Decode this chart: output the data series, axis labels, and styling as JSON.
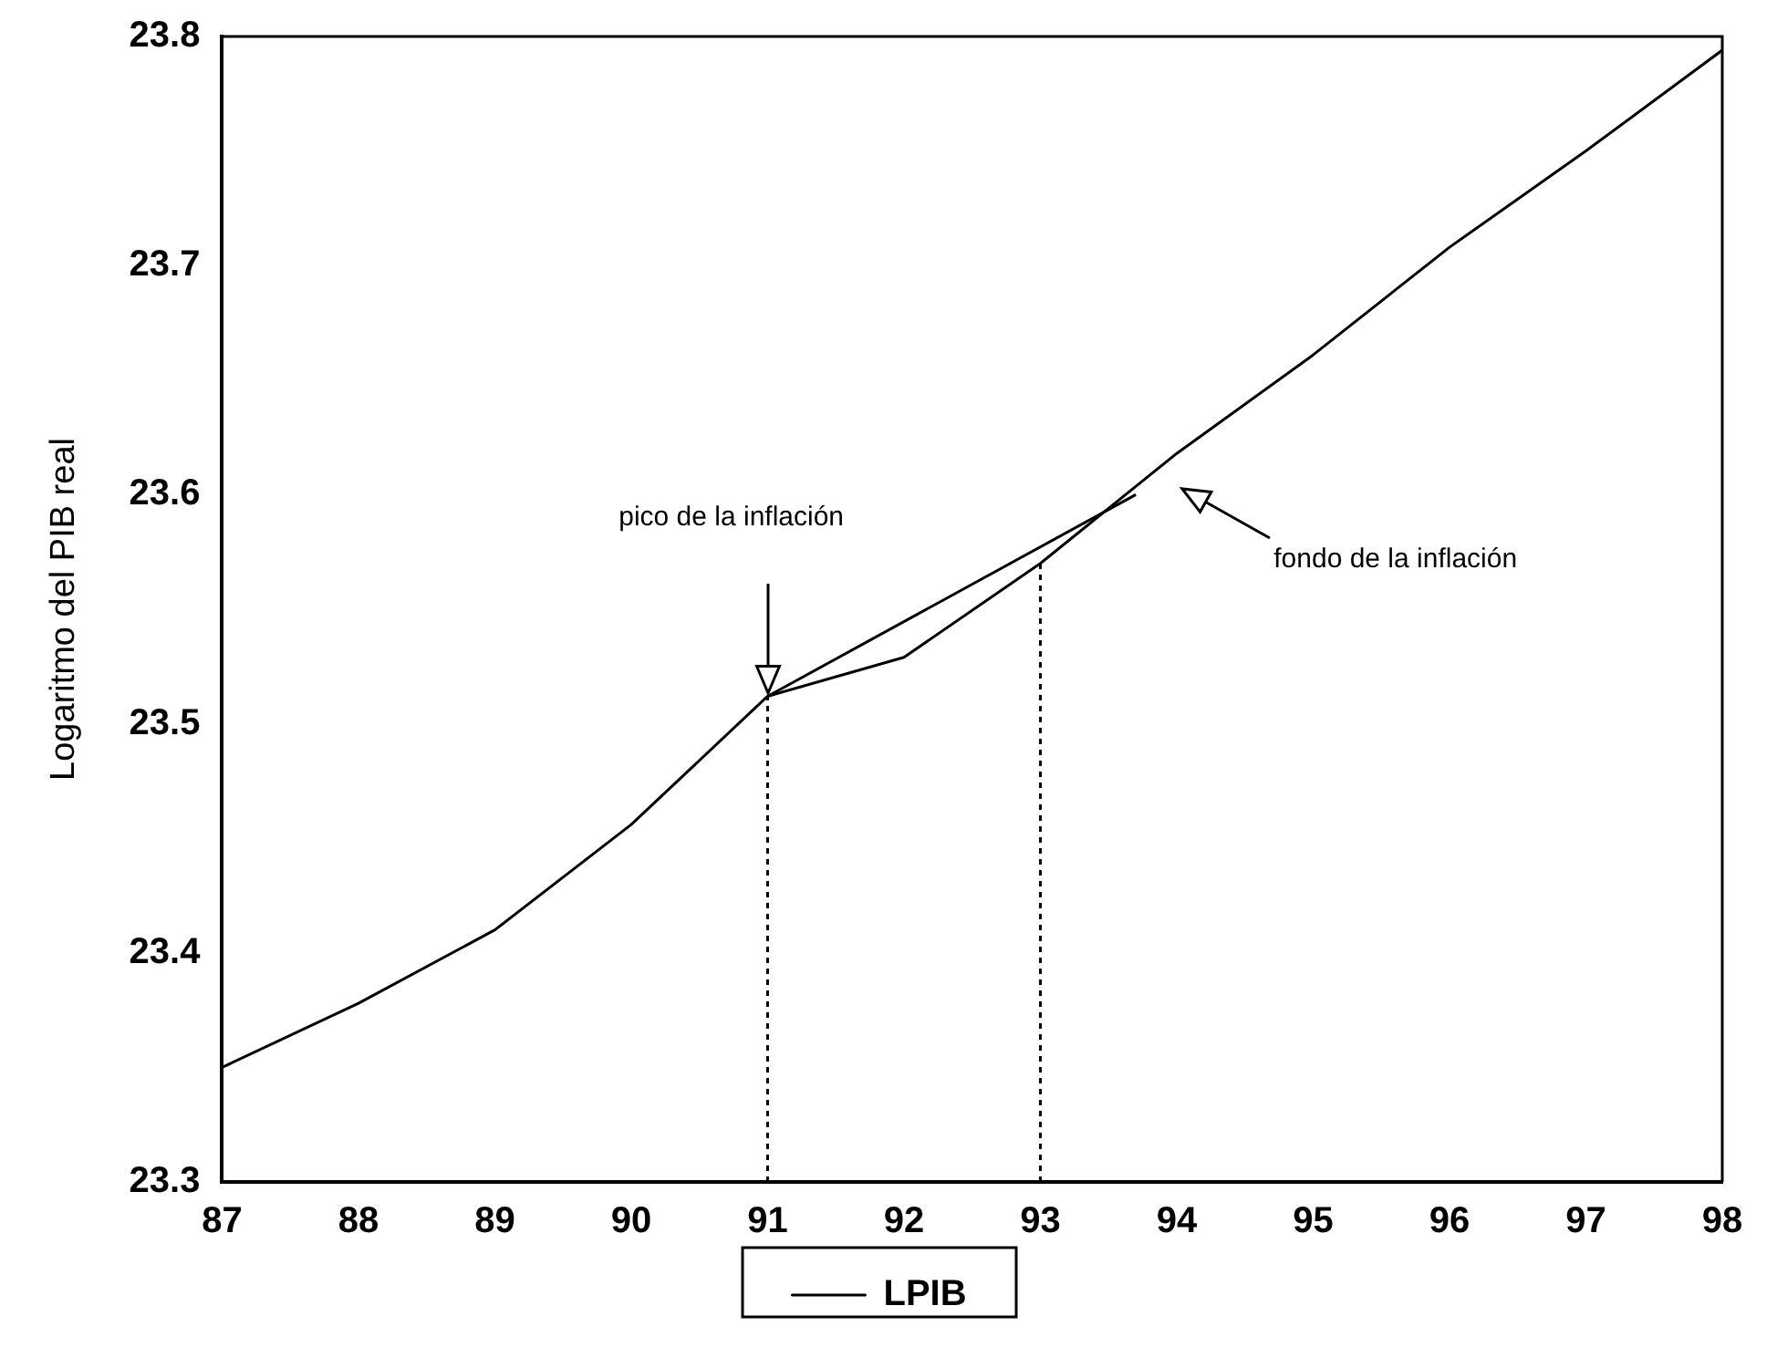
{
  "chart_data": {
    "type": "line",
    "ylabel": "Logaritmo del PIB real",
    "x": [
      87,
      88,
      89,
      90,
      91,
      92,
      93,
      94,
      95,
      96,
      97,
      98
    ],
    "series": [
      {
        "name": "LPIB",
        "color": "#000000",
        "values": [
          23.35,
          23.378,
          23.41,
          23.456,
          23.512,
          23.529,
          23.57,
          23.618,
          23.661,
          23.708,
          23.75,
          23.794
        ]
      },
      {
        "type": "line",
        "color": "#000000",
        "x": [
          91,
          93.7
        ],
        "values": [
          23.512,
          23.6
        ]
      },
      {
        "type": "line",
        "color": "#000000",
        "line_style": "dotted",
        "x": [
          91,
          91
        ],
        "values": [
          23.3,
          23.512
        ]
      },
      {
        "type": "line",
        "color": "#000000",
        "line_style": "dotted",
        "x": [
          93,
          93
        ],
        "values": [
          23.3,
          23.57
        ]
      }
    ],
    "xlim": [
      87,
      98
    ],
    "xticks": [
      87,
      88,
      89,
      90,
      91,
      92,
      93,
      94,
      95,
      96,
      97,
      98
    ],
    "ylim": [
      23.3,
      23.8
    ],
    "yticks": [
      23.3,
      23.4,
      23.5,
      23.6,
      23.7,
      23.8
    ],
    "grid": false,
    "legend": "bottom",
    "marker": "none",
    "line_style": "solid",
    "annotations": [
      "pico de la  inflación",
      "fondo de la inflación"
    ]
  }
}
